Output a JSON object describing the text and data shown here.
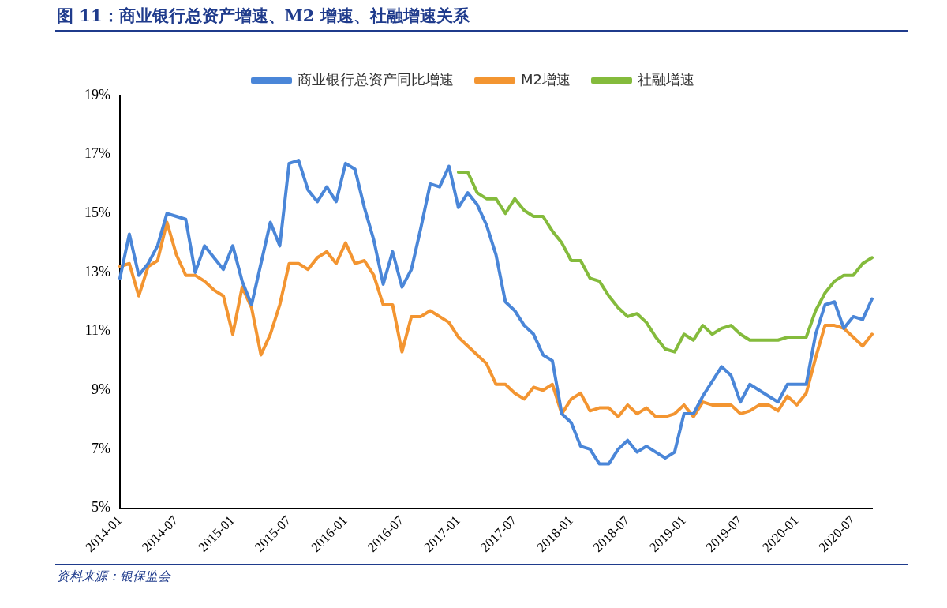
{
  "chart_data": {
    "type": "line",
    "title": "图 11：商业银行总资产增速、M2 增速、社融增速关系",
    "categories": [
      "2014-01",
      null,
      null,
      null,
      null,
      null,
      "2014-07",
      null,
      null,
      null,
      null,
      null,
      "2015-01",
      null,
      null,
      null,
      null,
      null,
      "2015-07",
      null,
      null,
      null,
      null,
      null,
      "2016-01",
      null,
      null,
      null,
      null,
      null,
      "2016-07",
      null,
      null,
      null,
      null,
      null,
      "2017-01",
      null,
      null,
      null,
      null,
      null,
      "2017-07",
      null,
      null,
      null,
      null,
      null,
      "2018-01",
      null,
      null,
      null,
      null,
      null,
      "2018-07",
      null,
      null,
      null,
      null,
      null,
      "2019-01",
      null,
      null,
      null,
      null,
      null,
      "2019-07",
      null,
      null,
      null,
      null,
      null,
      "2020-01",
      null,
      null,
      null,
      null,
      null,
      "2020-07",
      null,
      null
    ],
    "series": [
      {
        "name": "商业银行总资产同比增速",
        "color": "#4a86d8",
        "values": [
          12.8,
          14.3,
          12.9,
          13.3,
          13.9,
          15.0,
          14.9,
          14.8,
          13.0,
          13.9,
          13.5,
          13.1,
          13.9,
          12.7,
          11.9,
          13.3,
          14.7,
          13.9,
          16.7,
          16.8,
          15.8,
          15.4,
          15.9,
          15.4,
          16.7,
          16.5,
          15.2,
          14.1,
          12.6,
          13.7,
          12.5,
          13.1,
          14.5,
          16.0,
          15.9,
          16.6,
          15.2,
          15.7,
          15.3,
          14.6,
          13.6,
          12.0,
          11.7,
          11.2,
          10.9,
          10.2,
          10.0,
          8.2,
          7.9,
          7.1,
          7.0,
          6.5,
          6.5,
          7.0,
          7.3,
          6.9,
          7.1,
          6.9,
          6.7,
          6.9,
          8.2,
          8.2,
          8.8,
          9.3,
          9.8,
          9.5,
          8.6,
          9.2,
          9.0,
          8.8,
          8.6,
          9.2,
          9.2,
          9.2,
          10.9,
          11.9,
          12.0,
          11.1,
          11.5,
          11.4,
          12.1
        ]
      },
      {
        "name": "M2增速",
        "color": "#f39531",
        "values": [
          13.2,
          13.3,
          12.2,
          13.2,
          13.4,
          14.7,
          13.6,
          12.9,
          12.9,
          12.7,
          12.4,
          12.2,
          10.9,
          12.5,
          11.8,
          10.2,
          10.9,
          11.9,
          13.3,
          13.3,
          13.1,
          13.5,
          13.7,
          13.3,
          14.0,
          13.3,
          13.4,
          12.9,
          11.9,
          11.9,
          10.3,
          11.5,
          11.5,
          11.7,
          11.5,
          11.3,
          10.8,
          10.5,
          10.2,
          9.9,
          9.2,
          9.2,
          8.9,
          8.7,
          9.1,
          9.0,
          9.2,
          8.2,
          8.7,
          8.9,
          8.3,
          8.4,
          8.4,
          8.1,
          8.5,
          8.2,
          8.4,
          8.1,
          8.1,
          8.2,
          8.5,
          8.1,
          8.6,
          8.5,
          8.5,
          8.5,
          8.2,
          8.3,
          8.5,
          8.5,
          8.3,
          8.8,
          8.5,
          8.9,
          10.1,
          11.2,
          11.2,
          11.1,
          10.8,
          10.5,
          10.9
        ]
      },
      {
        "name": "社融增速",
        "color": "#84bb3c",
        "values": [
          null,
          null,
          null,
          null,
          null,
          null,
          null,
          null,
          null,
          null,
          null,
          null,
          null,
          null,
          null,
          null,
          null,
          null,
          null,
          null,
          null,
          null,
          null,
          null,
          null,
          null,
          null,
          null,
          null,
          null,
          null,
          null,
          null,
          null,
          null,
          null,
          16.4,
          16.4,
          15.7,
          15.5,
          15.5,
          15.0,
          15.5,
          15.1,
          14.9,
          14.9,
          14.4,
          14.0,
          13.4,
          13.4,
          12.8,
          12.7,
          12.2,
          11.8,
          11.5,
          11.6,
          11.3,
          10.8,
          10.4,
          10.3,
          10.9,
          10.7,
          11.2,
          10.9,
          11.1,
          11.2,
          10.9,
          10.7,
          10.7,
          10.7,
          10.7,
          10.8,
          10.8,
          10.8,
          11.7,
          12.3,
          12.7,
          12.9,
          12.9,
          13.3,
          13.5
        ]
      }
    ],
    "ylim": [
      5,
      19
    ],
    "yticks": [
      {
        "value": 5,
        "label": "5%"
      },
      {
        "value": 7,
        "label": "7%"
      },
      {
        "value": 9,
        "label": "9%"
      },
      {
        "value": 11,
        "label": "11%"
      },
      {
        "value": 13,
        "label": "13%"
      },
      {
        "value": 15,
        "label": "15%"
      },
      {
        "value": 17,
        "label": "17%"
      },
      {
        "value": 19,
        "label": "19%"
      }
    ],
    "grid": false,
    "legend": "top",
    "marker": "none",
    "line_style": "solid",
    "annotations": [
      "资料来源：银保监会"
    ]
  }
}
